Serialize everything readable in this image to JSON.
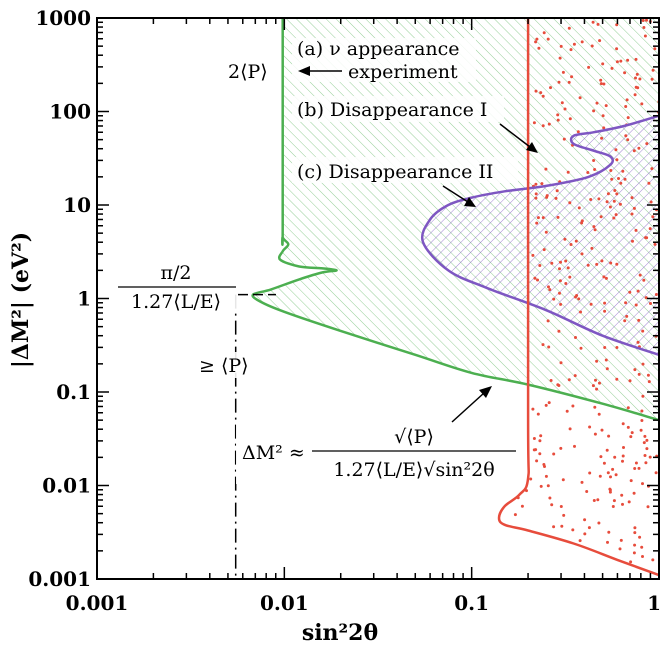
{
  "chart_data": {
    "type": "area",
    "x_scale": "log",
    "y_scale": "log",
    "xlim": [
      0.001,
      1
    ],
    "ylim": [
      0.001,
      1000
    ],
    "xlabel": "sin²2θ",
    "ylabel": "|ΔM²|  (eV²)",
    "x_ticks": [
      {
        "value": 0.001,
        "label": "0.001"
      },
      {
        "value": 0.01,
        "label": "0.01"
      },
      {
        "value": 0.1,
        "label": "0.1"
      },
      {
        "value": 1,
        "label": "1"
      }
    ],
    "y_ticks": [
      {
        "value": 0.001,
        "label": "0.001"
      },
      {
        "value": 0.01,
        "label": "0.01"
      },
      {
        "value": 0.1,
        "label": "0.1"
      },
      {
        "value": 1,
        "label": "1"
      },
      {
        "value": 10,
        "label": "10"
      },
      {
        "value": 100,
        "label": "100"
      },
      {
        "value": 1000,
        "label": "1000"
      }
    ],
    "series": [
      {
        "key": "a",
        "color": "#4caf50",
        "fill": "diagonal-hatch",
        "points": [
          [
            0.0098,
            1000
          ],
          [
            0.0098,
            6
          ],
          [
            0.0098,
            4.5
          ],
          [
            0.0105,
            3.8
          ],
          [
            0.0098,
            3.2
          ],
          [
            0.0095,
            2.6
          ],
          [
            0.012,
            2.2
          ],
          [
            0.016,
            2.1
          ],
          [
            0.019,
            2.0
          ],
          [
            0.016,
            1.9
          ],
          [
            0.012,
            1.6
          ],
          [
            0.0085,
            1.25
          ],
          [
            0.0068,
            1.1
          ],
          [
            0.0075,
            0.92
          ],
          [
            0.01,
            0.72
          ],
          [
            0.02,
            0.45
          ],
          [
            0.05,
            0.25
          ],
          [
            0.1,
            0.16
          ],
          [
            0.2,
            0.12
          ],
          [
            0.5,
            0.075
          ],
          [
            1,
            0.05
          ]
        ]
      },
      {
        "key": "b",
        "color": "#7e57c2",
        "fill": "cross-hatch",
        "points": [
          [
            1,
            0.25
          ],
          [
            0.5,
            0.4
          ],
          [
            0.25,
            0.75
          ],
          [
            0.12,
            1.3
          ],
          [
            0.075,
            2.0
          ],
          [
            0.055,
            4.0
          ],
          [
            0.06,
            7.0
          ],
          [
            0.075,
            10.0
          ],
          [
            0.1,
            12.0
          ],
          [
            0.15,
            14.0
          ],
          [
            0.25,
            16.0
          ],
          [
            0.42,
            20.0
          ],
          [
            0.55,
            27.0
          ],
          [
            0.55,
            33.0
          ],
          [
            0.45,
            38.0
          ],
          [
            0.35,
            45.0
          ],
          [
            0.35,
            55.0
          ],
          [
            0.45,
            60.0
          ],
          [
            0.65,
            70.0
          ],
          [
            1,
            90.0
          ]
        ]
      },
      {
        "key": "c",
        "color": "#e74c3c",
        "fill": "dots",
        "points": [
          [
            0.2,
            1000
          ],
          [
            0.2,
            0.06
          ],
          [
            0.2,
            0.012
          ],
          [
            0.18,
            0.008
          ],
          [
            0.15,
            0.006
          ],
          [
            0.14,
            0.0045
          ],
          [
            0.15,
            0.0038
          ],
          [
            0.2,
            0.0033
          ],
          [
            0.35,
            0.0024
          ],
          [
            0.6,
            0.0016
          ],
          [
            1,
            0.0011
          ]
        ]
      }
    ],
    "markers": {
      "half_pi_point": {
        "x": 0.0055,
        "y": 1.1
      }
    },
    "annotations": {
      "a_line1": "(a) ν appearance",
      "a_line2": "experiment",
      "b": "(b) Disappearance I",
      "c": "(c) Disappearance II",
      "two_p": "2⟨P⟩",
      "pi_num": "π/2",
      "pi_den": "1.27⟨L/E⟩",
      "ge_p": "≥ ⟨P⟩",
      "formula_lhs": "ΔM² ≈",
      "formula_num": "√⟨P⟩",
      "formula_den": "1.27⟨L/E⟩√sin²2θ"
    }
  }
}
